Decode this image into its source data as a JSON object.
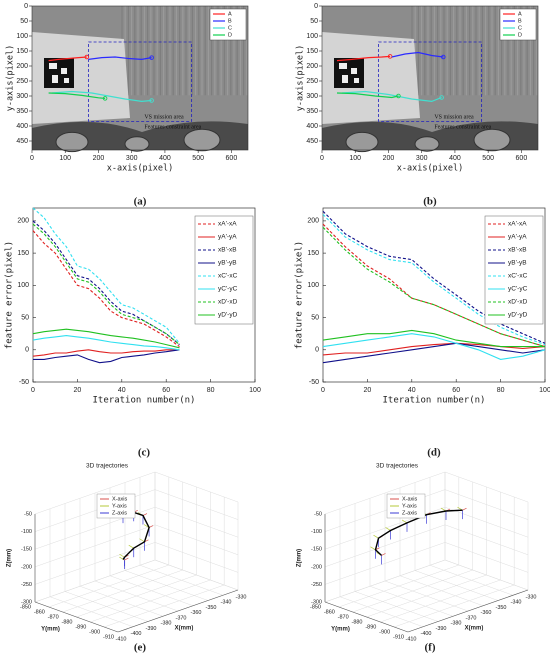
{
  "chart_data": [
    {
      "type": "track",
      "caption": "(a)",
      "xlabel": "x-axis(pixel)",
      "ylabel": "y-axis(pixel)",
      "xlim": [
        0,
        650
      ],
      "ylim": [
        480,
        0
      ],
      "xticks": [
        0,
        100,
        200,
        300,
        400,
        500,
        600
      ],
      "yticks": [
        0,
        50,
        100,
        150,
        200,
        250,
        300,
        350,
        400,
        450
      ],
      "annotations": [
        "VS mission area",
        "Features constraint area"
      ],
      "legend": "upper right",
      "series": [
        {
          "name": "A",
          "color": "#ff2020",
          "x": [
            50,
            80,
            110,
            140,
            165
          ],
          "values": [
            182,
            178,
            175,
            172,
            170
          ]
        },
        {
          "name": "B",
          "color": "#2a2aff",
          "x": [
            170,
            210,
            250,
            290,
            330,
            360
          ],
          "values": [
            178,
            172,
            170,
            175,
            178,
            172
          ]
        },
        {
          "name": "C",
          "color": "#40e0d0",
          "x": [
            60,
            120,
            180,
            230,
            280,
            330,
            360
          ],
          "values": [
            290,
            285,
            290,
            300,
            310,
            318,
            315
          ]
        },
        {
          "name": "D",
          "color": "#10d050",
          "x": [
            50,
            100,
            150,
            200,
            220
          ],
          "values": [
            290,
            292,
            298,
            306,
            308
          ]
        }
      ]
    },
    {
      "type": "track",
      "caption": "(b)",
      "xlabel": "x-axis(pixel)",
      "ylabel": "y-axis(pixel)",
      "xlim": [
        0,
        650
      ],
      "ylim": [
        480,
        0
      ],
      "xticks": [
        0,
        100,
        200,
        300,
        400,
        500,
        600
      ],
      "yticks": [
        0,
        50,
        100,
        150,
        200,
        250,
        300,
        350,
        400,
        450
      ],
      "annotations": [
        "VS mission area",
        "Features constraint area"
      ],
      "legend": "upper right",
      "series": [
        {
          "name": "A",
          "color": "#ff2020",
          "x": [
            45,
            90,
            140,
            180,
            205
          ],
          "values": [
            182,
            178,
            172,
            170,
            168
          ]
        },
        {
          "name": "B",
          "color": "#2a2aff",
          "x": [
            210,
            250,
            290,
            330,
            365
          ],
          "values": [
            170,
            160,
            155,
            165,
            170
          ]
        },
        {
          "name": "C",
          "color": "#40e0d0",
          "x": [
            60,
            130,
            200,
            270,
            330,
            360
          ],
          "values": [
            290,
            285,
            295,
            310,
            318,
            305
          ]
        },
        {
          "name": "D",
          "color": "#10d050",
          "x": [
            45,
            100,
            160,
            210,
            230
          ],
          "values": [
            290,
            292,
            300,
            305,
            300
          ]
        }
      ]
    },
    {
      "type": "line",
      "caption": "(c)",
      "xlabel": "Iteration number(n)",
      "ylabel": "feature error(pixel)",
      "xlim": [
        0,
        100
      ],
      "ylim": [
        -50,
        220
      ],
      "xticks": [
        0,
        20,
        40,
        60,
        80,
        100
      ],
      "yticks": [
        -50,
        0,
        50,
        100,
        150,
        200
      ],
      "legend": "upper right",
      "x": [
        0,
        5,
        10,
        15,
        20,
        25,
        30,
        35,
        40,
        45,
        50,
        55,
        60,
        66
      ],
      "series": [
        {
          "name": "xA'-xA",
          "color": "#e02020",
          "style": "dashed",
          "values": [
            185,
            165,
            150,
            125,
            100,
            95,
            80,
            60,
            50,
            45,
            40,
            30,
            20,
            5
          ]
        },
        {
          "name": "yA'-yA",
          "color": "#e02020",
          "style": "solid",
          "values": [
            -10,
            -8,
            -5,
            -5,
            -2,
            0,
            -3,
            -5,
            -5,
            -3,
            -2,
            -2,
            0,
            0
          ]
        },
        {
          "name": "xB'-xB",
          "color": "#10108a",
          "style": "dashed",
          "values": [
            200,
            185,
            165,
            140,
            115,
            110,
            95,
            75,
            60,
            55,
            45,
            35,
            25,
            8
          ]
        },
        {
          "name": "yB'-yB",
          "color": "#10108a",
          "style": "solid",
          "values": [
            -15,
            -15,
            -12,
            -10,
            -8,
            -15,
            -20,
            -18,
            -12,
            -10,
            -8,
            -5,
            -3,
            0
          ]
        },
        {
          "name": "xC'-xC",
          "color": "#30e0f0",
          "style": "dashed",
          "values": [
            220,
            205,
            180,
            160,
            130,
            125,
            110,
            90,
            70,
            65,
            55,
            45,
            35,
            10
          ]
        },
        {
          "name": "yC'-yC",
          "color": "#30e0f0",
          "style": "solid",
          "values": [
            15,
            18,
            20,
            22,
            20,
            18,
            15,
            12,
            10,
            8,
            6,
            5,
            3,
            0
          ]
        },
        {
          "name": "xD'-xD",
          "color": "#20c020",
          "style": "dashed",
          "values": [
            195,
            180,
            160,
            135,
            110,
            105,
            90,
            70,
            55,
            50,
            45,
            35,
            25,
            8
          ]
        },
        {
          "name": "yD'-yD",
          "color": "#20c020",
          "style": "solid",
          "values": [
            25,
            28,
            30,
            32,
            30,
            28,
            25,
            22,
            20,
            18,
            15,
            12,
            8,
            3
          ]
        }
      ]
    },
    {
      "type": "line",
      "caption": "(d)",
      "xlabel": "Iteration number(n)",
      "ylabel": "feature error(pixel)",
      "xlim": [
        0,
        100
      ],
      "ylim": [
        -50,
        220
      ],
      "xticks": [
        0,
        20,
        40,
        60,
        80,
        100
      ],
      "yticks": [
        -50,
        0,
        50,
        100,
        150,
        200
      ],
      "legend": "upper right",
      "x": [
        0,
        10,
        20,
        30,
        40,
        50,
        60,
        70,
        80,
        90,
        100
      ],
      "series": [
        {
          "name": "xA'-xA",
          "color": "#e02020",
          "style": "dashed",
          "values": [
            195,
            160,
            130,
            110,
            80,
            70,
            55,
            40,
            25,
            15,
            5
          ]
        },
        {
          "name": "yA'-yA",
          "color": "#e02020",
          "style": "solid",
          "values": [
            -8,
            -5,
            -5,
            0,
            5,
            8,
            10,
            8,
            5,
            2,
            5
          ]
        },
        {
          "name": "xB'-xB",
          "color": "#10108a",
          "style": "dashed",
          "values": [
            215,
            180,
            160,
            145,
            140,
            110,
            85,
            60,
            40,
            25,
            10
          ]
        },
        {
          "name": "yB'-yB",
          "color": "#10108a",
          "style": "solid",
          "values": [
            -20,
            -15,
            -10,
            -5,
            0,
            5,
            10,
            5,
            0,
            -5,
            0
          ]
        },
        {
          "name": "xC'-xC",
          "color": "#30e0f0",
          "style": "dashed",
          "values": [
            210,
            175,
            155,
            140,
            135,
            105,
            80,
            55,
            35,
            20,
            8
          ]
        },
        {
          "name": "yC'-yC",
          "color": "#30e0f0",
          "style": "solid",
          "values": [
            5,
            10,
            15,
            20,
            25,
            20,
            10,
            0,
            -15,
            -10,
            0
          ]
        },
        {
          "name": "xD'-xD",
          "color": "#20c020",
          "style": "dashed",
          "values": [
            190,
            155,
            125,
            105,
            80,
            70,
            55,
            40,
            25,
            15,
            5
          ]
        },
        {
          "name": "yD'-yD",
          "color": "#20c020",
          "style": "solid",
          "values": [
            15,
            20,
            25,
            25,
            30,
            25,
            15,
            10,
            5,
            5,
            5
          ]
        }
      ]
    },
    {
      "type": "line3d",
      "caption": "(e)",
      "title": "3D trajectories",
      "xlabel": "X(mm)",
      "ylabel": "Y(mm)",
      "zlabel": "Z(mm)",
      "xlim": [
        -410,
        -330
      ],
      "ylim": [
        -910,
        -850
      ],
      "zlim": [
        -300,
        -50
      ],
      "xticks": [
        -410,
        -400,
        -390,
        -380,
        -370,
        -360,
        -350,
        -340,
        -330
      ],
      "yticks": [
        -910,
        -900,
        -890,
        -880,
        -870,
        -860,
        -850
      ],
      "zticks": [
        -300,
        -250,
        -200,
        -150,
        -100,
        -50
      ],
      "grid": true,
      "legend": [
        {
          "name": "X-axis",
          "color": "#d9534f"
        },
        {
          "name": "Y-axis",
          "color": "#b5c93a"
        },
        {
          "name": "Z-axis",
          "color": "#3b3bd6"
        }
      ],
      "trajectory": {
        "color": "#000000",
        "x": [
          -379,
          -370,
          -362,
          -357,
          -361,
          -370,
          -378,
          -379
        ],
        "y": [
          -880,
          -878,
          -876,
          -875,
          -876,
          -878,
          -880,
          -881
        ],
        "z": [
          -54,
          -65,
          -89,
          -132,
          -165,
          -167,
          -178,
          -183
        ]
      }
    },
    {
      "type": "line3d",
      "caption": "(f)",
      "title": "3D trajectories",
      "xlabel": "X(mm)",
      "ylabel": "Y(mm)",
      "zlabel": "Z(mm)",
      "xlim": [
        -410,
        -330
      ],
      "ylim": [
        -910,
        -850
      ],
      "zlim": [
        -300,
        -50
      ],
      "xticks": [
        -410,
        -400,
        -390,
        -380,
        -370,
        -360,
        -350,
        -340,
        -330
      ],
      "yticks": [
        -910,
        -900,
        -890,
        -880,
        -870,
        -860,
        -850
      ],
      "zticks": [
        -300,
        -250,
        -200,
        -150,
        -100,
        -50
      ],
      "grid": true,
      "legend": [
        {
          "name": "X-axis",
          "color": "#d9534f"
        },
        {
          "name": "Y-axis",
          "color": "#b5c93a"
        },
        {
          "name": "Z-axis",
          "color": "#3b3bd6"
        }
      ],
      "trajectory": {
        "color": "#000000",
        "x": [
          -400,
          -404,
          -402,
          -394,
          -383,
          -370,
          -357,
          -346
        ],
        "y": [
          -880,
          -880,
          -880,
          -880,
          -880,
          -880,
          -880,
          -880
        ],
        "z": [
          -140,
          -118,
          -88,
          -78,
          -73,
          -69,
          -78,
          -92
        ]
      }
    }
  ]
}
